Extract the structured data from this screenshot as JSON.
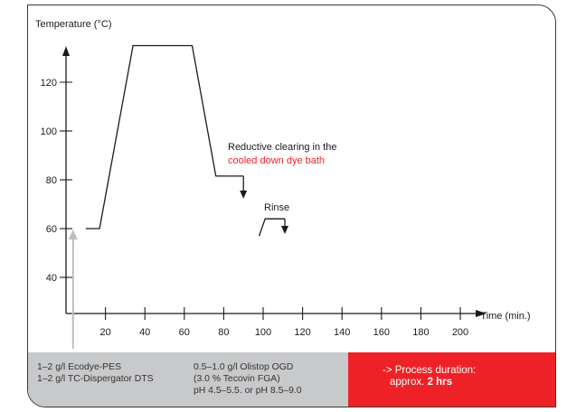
{
  "colors": {
    "line": "#1a1a1a",
    "highlight": "#ee2226",
    "axis_arrow_gray": "#bdbdbd",
    "footer_gray": "#c8c9cb",
    "footer_red": "#ee2226"
  },
  "chart_data": {
    "type": "line",
    "ylabel": "Temperature (°C)",
    "xlabel": "Time (min.)",
    "x_ticks": [
      20,
      40,
      60,
      80,
      100,
      120,
      140,
      160,
      180,
      200
    ],
    "y_ticks": [
      40,
      60,
      80,
      100,
      120
    ],
    "xlim": [
      0,
      220
    ],
    "ylim": [
      28,
      140
    ],
    "grid": false,
    "series": [
      {
        "points": [
          [
            10,
            60
          ],
          [
            17,
            60
          ],
          [
            34,
            135
          ],
          [
            64,
            135
          ],
          [
            76,
            81.5
          ],
          [
            90,
            81.5
          ]
        ]
      },
      {
        "points": [
          [
            98,
            57
          ],
          [
            101,
            64
          ],
          [
            111,
            64
          ]
        ]
      }
    ],
    "arrows": [
      {
        "x": 90,
        "y_from": 81.5,
        "y_to": 73
      },
      {
        "x": 111,
        "y_from": 64,
        "y_to": 58.5
      }
    ],
    "annotations": [
      {
        "line1": "Reductive clearing in the",
        "line2": "cooled down dye bath"
      },
      {
        "text": "Rinse"
      }
    ]
  },
  "footer": {
    "col1": [
      "1–2 g/l Ecodye-PES",
      "1–2 g/l TC-Dispergator DTS"
    ],
    "col2": [
      "0.5–1.0 g/l Olistop OGD",
      "(3.0 % Tecovin FGA)",
      "pH 4.5–5.5. or pH 8.5–9.0"
    ],
    "duration_label": "-> Process duration:",
    "duration_prefix": "approx.",
    "duration_value": "2 hrs"
  }
}
